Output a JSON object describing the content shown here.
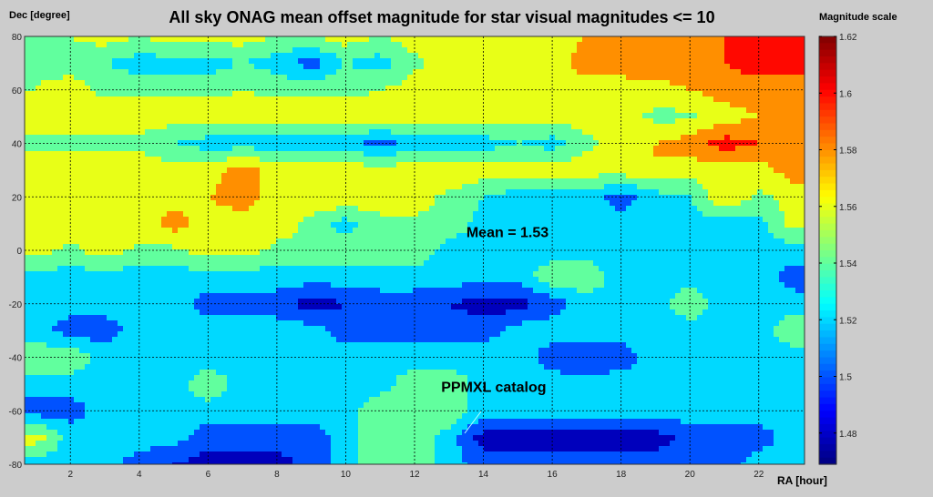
{
  "chart_data": {
    "type": "heatmap",
    "subtype": "filled-contour",
    "title": "All sky ONAG mean offset magnitude for star visual magnitudes <= 10",
    "xlabel": "RA [hour]",
    "ylabel": "Dec [degree]",
    "colorbar_label": "Magnitude scale",
    "colormap": "jet",
    "xlim": [
      0.67,
      23.33
    ],
    "ylim": [
      -80,
      80
    ],
    "clim": [
      1.469,
      1.62
    ],
    "grid": true,
    "x_ticks": [
      2,
      4,
      6,
      8,
      10,
      12,
      14,
      16,
      18,
      20,
      22
    ],
    "y_ticks": [
      80,
      60,
      40,
      20,
      0,
      -20,
      -40,
      -60,
      -80
    ],
    "colorbar_ticks": [
      1.62,
      1.6,
      1.58,
      1.56,
      1.54,
      1.52,
      1.5,
      1.48
    ],
    "annotations": [
      {
        "text": "Mean = 1.53",
        "ra": 14.7,
        "dec": 5
      },
      {
        "text": "PPMXL catalog",
        "ra": 14.3,
        "dec": -53
      }
    ],
    "x": [
      1,
      2,
      3,
      4,
      5,
      6,
      7,
      8,
      9,
      10,
      11,
      12,
      13,
      14,
      15,
      16,
      17,
      18,
      19,
      20,
      21,
      22,
      23
    ],
    "y": [
      80,
      70,
      60,
      50,
      40,
      30,
      20,
      10,
      0,
      -10,
      -20,
      -30,
      -40,
      -50,
      -60,
      -70,
      -80
    ],
    "z": [
      [
        1.55,
        1.55,
        1.56,
        1.55,
        1.56,
        1.56,
        1.56,
        1.55,
        1.55,
        1.56,
        1.55,
        1.56,
        1.56,
        1.56,
        1.56,
        1.56,
        1.57,
        1.58,
        1.58,
        1.58,
        1.59,
        1.61,
        1.61
      ],
      [
        1.545,
        1.54,
        1.53,
        1.52,
        1.52,
        1.52,
        1.53,
        1.52,
        1.5,
        1.53,
        1.52,
        1.545,
        1.56,
        1.56,
        1.56,
        1.56,
        1.58,
        1.58,
        1.59,
        1.58,
        1.59,
        1.6,
        1.6
      ],
      [
        1.55,
        1.56,
        1.545,
        1.545,
        1.545,
        1.545,
        1.55,
        1.545,
        1.545,
        1.545,
        1.55,
        1.56,
        1.56,
        1.56,
        1.56,
        1.56,
        1.56,
        1.56,
        1.56,
        1.57,
        1.58,
        1.58,
        1.58
      ],
      [
        1.56,
        1.56,
        1.56,
        1.56,
        1.56,
        1.56,
        1.56,
        1.56,
        1.56,
        1.56,
        1.56,
        1.56,
        1.56,
        1.56,
        1.56,
        1.56,
        1.56,
        1.56,
        1.545,
        1.545,
        1.56,
        1.57,
        1.58
      ],
      [
        1.545,
        1.545,
        1.545,
        1.545,
        1.53,
        1.52,
        1.52,
        1.52,
        1.52,
        1.52,
        1.5,
        1.52,
        1.52,
        1.52,
        1.53,
        1.52,
        1.545,
        1.56,
        1.57,
        1.58,
        1.6,
        1.59,
        1.58
      ],
      [
        1.57,
        1.56,
        1.56,
        1.56,
        1.56,
        1.56,
        1.58,
        1.56,
        1.56,
        1.56,
        1.56,
        1.56,
        1.57,
        1.56,
        1.56,
        1.56,
        1.56,
        1.56,
        1.57,
        1.56,
        1.56,
        1.56,
        1.58
      ],
      [
        1.56,
        1.56,
        1.56,
        1.56,
        1.56,
        1.57,
        1.58,
        1.56,
        1.56,
        1.57,
        1.56,
        1.56,
        1.545,
        1.53,
        1.52,
        1.52,
        1.52,
        1.5,
        1.52,
        1.53,
        1.57,
        1.545,
        1.56
      ],
      [
        1.56,
        1.56,
        1.56,
        1.56,
        1.58,
        1.56,
        1.56,
        1.56,
        1.545,
        1.52,
        1.545,
        1.545,
        1.545,
        1.52,
        1.52,
        1.52,
        1.52,
        1.52,
        1.52,
        1.52,
        1.52,
        1.52,
        1.56
      ],
      [
        1.56,
        1.545,
        1.56,
        1.545,
        1.545,
        1.56,
        1.56,
        1.545,
        1.545,
        1.545,
        1.545,
        1.545,
        1.52,
        1.52,
        1.52,
        1.52,
        1.52,
        1.52,
        1.52,
        1.52,
        1.52,
        1.52,
        1.52
      ],
      [
        1.52,
        1.52,
        1.52,
        1.52,
        1.52,
        1.52,
        1.52,
        1.52,
        1.52,
        1.52,
        1.52,
        1.52,
        1.52,
        1.52,
        1.52,
        1.545,
        1.545,
        1.52,
        1.52,
        1.52,
        1.52,
        1.52,
        1.5
      ],
      [
        1.52,
        1.52,
        1.52,
        1.52,
        1.52,
        1.5,
        1.5,
        1.5,
        1.48,
        1.49,
        1.5,
        1.5,
        1.49,
        1.48,
        1.48,
        1.5,
        1.52,
        1.52,
        1.52,
        1.545,
        1.52,
        1.52,
        1.52
      ],
      [
        1.52,
        1.5,
        1.5,
        1.52,
        1.52,
        1.52,
        1.52,
        1.52,
        1.52,
        1.5,
        1.5,
        1.5,
        1.5,
        1.5,
        1.52,
        1.52,
        1.52,
        1.52,
        1.52,
        1.52,
        1.52,
        1.52,
        1.545
      ],
      [
        1.545,
        1.545,
        1.52,
        1.52,
        1.52,
        1.52,
        1.52,
        1.52,
        1.52,
        1.52,
        1.52,
        1.52,
        1.52,
        1.52,
        1.52,
        1.5,
        1.49,
        1.5,
        1.52,
        1.52,
        1.52,
        1.52,
        1.52
      ],
      [
        1.52,
        1.52,
        1.52,
        1.52,
        1.52,
        1.545,
        1.52,
        1.52,
        1.52,
        1.52,
        1.52,
        1.545,
        1.545,
        1.52,
        1.52,
        1.52,
        1.52,
        1.52,
        1.52,
        1.52,
        1.52,
        1.52,
        1.52
      ],
      [
        1.5,
        1.5,
        1.52,
        1.52,
        1.52,
        1.52,
        1.52,
        1.52,
        1.52,
        1.52,
        1.545,
        1.545,
        1.545,
        1.52,
        1.52,
        1.52,
        1.52,
        1.52,
        1.52,
        1.52,
        1.52,
        1.52,
        1.52
      ],
      [
        1.56,
        1.52,
        1.52,
        1.52,
        1.52,
        1.5,
        1.5,
        1.5,
        1.5,
        1.52,
        1.545,
        1.545,
        1.52,
        1.48,
        1.48,
        1.48,
        1.48,
        1.48,
        1.48,
        1.5,
        1.5,
        1.5,
        1.52
      ],
      [
        1.52,
        1.52,
        1.52,
        1.5,
        1.49,
        1.48,
        1.48,
        1.48,
        1.5,
        1.52,
        1.545,
        1.545,
        1.52,
        1.5,
        1.5,
        1.5,
        1.5,
        1.5,
        1.5,
        1.5,
        1.5,
        1.52,
        1.52
      ]
    ]
  }
}
